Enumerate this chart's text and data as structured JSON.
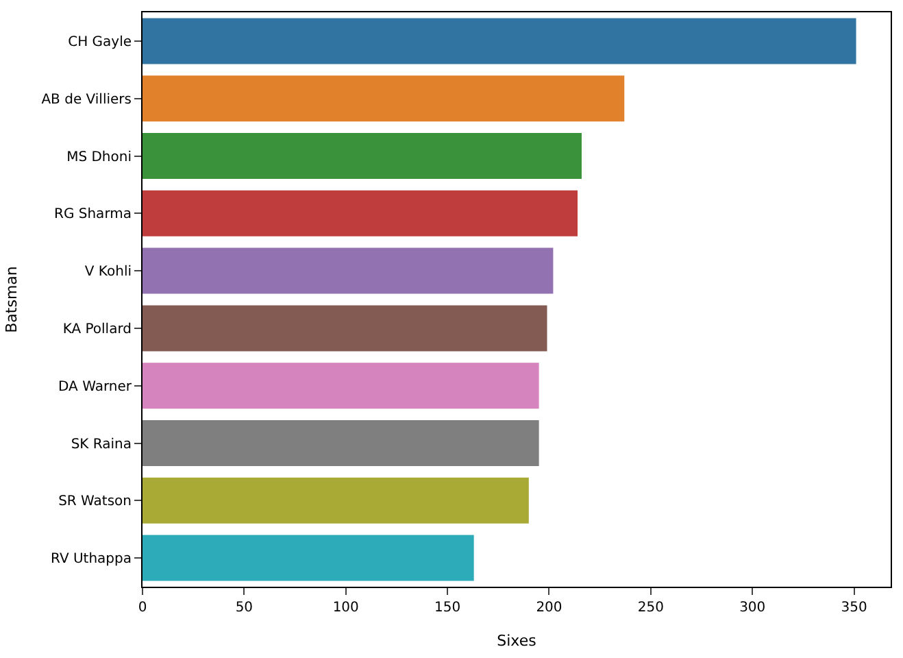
{
  "chart_data": {
    "type": "bar",
    "orientation": "horizontal",
    "xlabel": "Sixes",
    "ylabel": "Batsman",
    "categories": [
      "CH Gayle",
      "AB de Villiers",
      "MS Dhoni",
      "RG Sharma",
      "V Kohli",
      "KA Pollard",
      "DA Warner",
      "SK Raina",
      "SR Watson",
      "RV Uthappa"
    ],
    "values": [
      351,
      237,
      216,
      214,
      202,
      199,
      195,
      195,
      190,
      163
    ],
    "colors": [
      "#3274a1",
      "#e1812c",
      "#3a923a",
      "#c03d3e",
      "#9372b2",
      "#845b53",
      "#d684bd",
      "#7f7f7f",
      "#a9aa35",
      "#2eabb8"
    ],
    "xlim": [
      0,
      368
    ],
    "xticks": [
      0,
      50,
      100,
      150,
      200,
      250,
      300,
      350
    ]
  }
}
